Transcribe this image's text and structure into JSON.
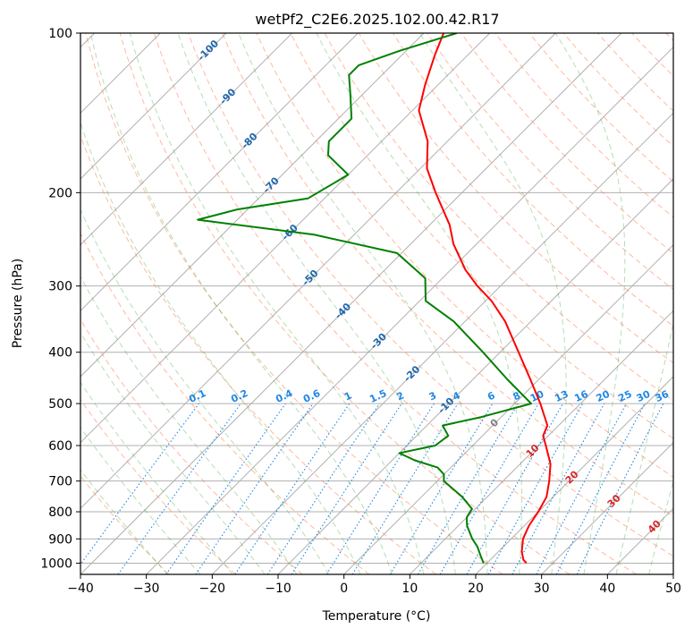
{
  "chart_data": {
    "type": "line",
    "title": "wetPf2_C2E6.2025.102.00.42.R17",
    "xlabel": "Temperature (°C)",
    "ylabel": "Pressure (hPa)",
    "xlim": [
      -40,
      50
    ],
    "ylim": [
      1050,
      100
    ],
    "y_scale": "log",
    "skew": 45,
    "grid": true,
    "x_ticks": [
      -40,
      -30,
      -20,
      -10,
      0,
      10,
      20,
      30,
      40,
      50
    ],
    "x_tick_labels": [
      "−40",
      "−30",
      "−20",
      "−10",
      "0",
      "10",
      "20",
      "30",
      "40",
      "50"
    ],
    "y_ticks": [
      100,
      200,
      300,
      400,
      500,
      600,
      700,
      800,
      900,
      1000
    ],
    "y_tick_labels": [
      "100",
      "200",
      "300",
      "400",
      "500",
      "600",
      "700",
      "800",
      "900",
      "1000"
    ],
    "series": [
      {
        "type": "temperature",
        "color": "#ff0000",
        "points": [
          {
            "p": 1000,
            "t": 26.0
          },
          {
            "p": 985,
            "t": 25.0
          },
          {
            "p": 950,
            "t": 23.5
          },
          {
            "p": 900,
            "t": 21.8
          },
          {
            "p": 850,
            "t": 20.7
          },
          {
            "p": 800,
            "t": 20.0
          },
          {
            "p": 750,
            "t": 19.0
          },
          {
            "p": 700,
            "t": 17.0
          },
          {
            "p": 650,
            "t": 14.6
          },
          {
            "p": 600,
            "t": 11.1
          },
          {
            "p": 575,
            "t": 9.2
          },
          {
            "p": 550,
            "t": 8.3
          },
          {
            "p": 500,
            "t": 3.9
          },
          {
            "p": 450,
            "t": -1.3
          },
          {
            "p": 400,
            "t": -7.2
          },
          {
            "p": 350,
            "t": -13.9
          },
          {
            "p": 320,
            "t": -19.1
          },
          {
            "p": 300,
            "t": -23.5
          },
          {
            "p": 280,
            "t": -27.7
          },
          {
            "p": 250,
            "t": -33.5
          },
          {
            "p": 230,
            "t": -37.0
          },
          {
            "p": 200,
            "t": -44.0
          },
          {
            "p": 180,
            "t": -49.0
          },
          {
            "p": 160,
            "t": -53.0
          },
          {
            "p": 140,
            "t": -59.0
          },
          {
            "p": 125,
            "t": -62.0
          },
          {
            "p": 110,
            "t": -65.0
          },
          {
            "p": 100,
            "t": -67.0
          }
        ]
      },
      {
        "type": "dewpoint",
        "color": "#008000",
        "points": [
          {
            "p": 1000,
            "t": 19.5
          },
          {
            "p": 970,
            "t": 18.0
          },
          {
            "p": 930,
            "t": 16.0
          },
          {
            "p": 900,
            "t": 14.1
          },
          {
            "p": 850,
            "t": 11.3
          },
          {
            "p": 820,
            "t": 10.0
          },
          {
            "p": 790,
            "t": 9.5
          },
          {
            "p": 750,
            "t": 6.2
          },
          {
            "p": 700,
            "t": 1.0
          },
          {
            "p": 680,
            "t": 0.0
          },
          {
            "p": 660,
            "t": -2.0
          },
          {
            "p": 640,
            "t": -6.5
          },
          {
            "p": 620,
            "t": -10.0
          },
          {
            "p": 600,
            "t": -5.7
          },
          {
            "p": 575,
            "t": -5.2
          },
          {
            "p": 550,
            "t": -7.6
          },
          {
            "p": 530,
            "t": -3.0
          },
          {
            "p": 500,
            "t": 2.5
          },
          {
            "p": 450,
            "t": -4.8
          },
          {
            "p": 400,
            "t": -12.6
          },
          {
            "p": 350,
            "t": -21.7
          },
          {
            "p": 320,
            "t": -29.1
          },
          {
            "p": 290,
            "t": -32.6
          },
          {
            "p": 260,
            "t": -40.7
          },
          {
            "p": 240,
            "t": -56.1
          },
          {
            "p": 225,
            "t": -76.0
          },
          {
            "p": 215,
            "t": -71.5
          },
          {
            "p": 205,
            "t": -62.5
          },
          {
            "p": 185,
            "t": -60.0
          },
          {
            "p": 170,
            "t": -66.0
          },
          {
            "p": 160,
            "t": -68.0
          },
          {
            "p": 145,
            "t": -68.0
          },
          {
            "p": 130,
            "t": -72.0
          },
          {
            "p": 120,
            "t": -75.0
          },
          {
            "p": 115,
            "t": -75.0
          },
          {
            "p": 108,
            "t": -71.0
          },
          {
            "p": 100,
            "t": -65.0
          }
        ]
      }
    ],
    "dry_adiabat_labels": [
      "-100",
      "-90",
      "-80",
      "-70",
      "-60",
      "-50",
      "-40",
      "-30",
      "-20",
      "-10"
    ],
    "dry_adiabat_label_color": "#2166ac",
    "mixing_ratio_labels": [
      "0.1",
      "0.2",
      "0.4",
      "0.6",
      "1",
      "1.5",
      "2",
      "3",
      "4",
      "6",
      "8",
      "10",
      "13",
      "16",
      "20",
      "25",
      "30",
      "36"
    ],
    "mixing_ratio_color": "#1e88e5",
    "moist_adiabat_labels": [
      "0",
      "10",
      "20",
      "30",
      "40"
    ],
    "moist_adiabat_label_colors": [
      "#808080",
      "#d62728",
      "#d62728",
      "#d62728",
      "#d62728"
    ]
  }
}
